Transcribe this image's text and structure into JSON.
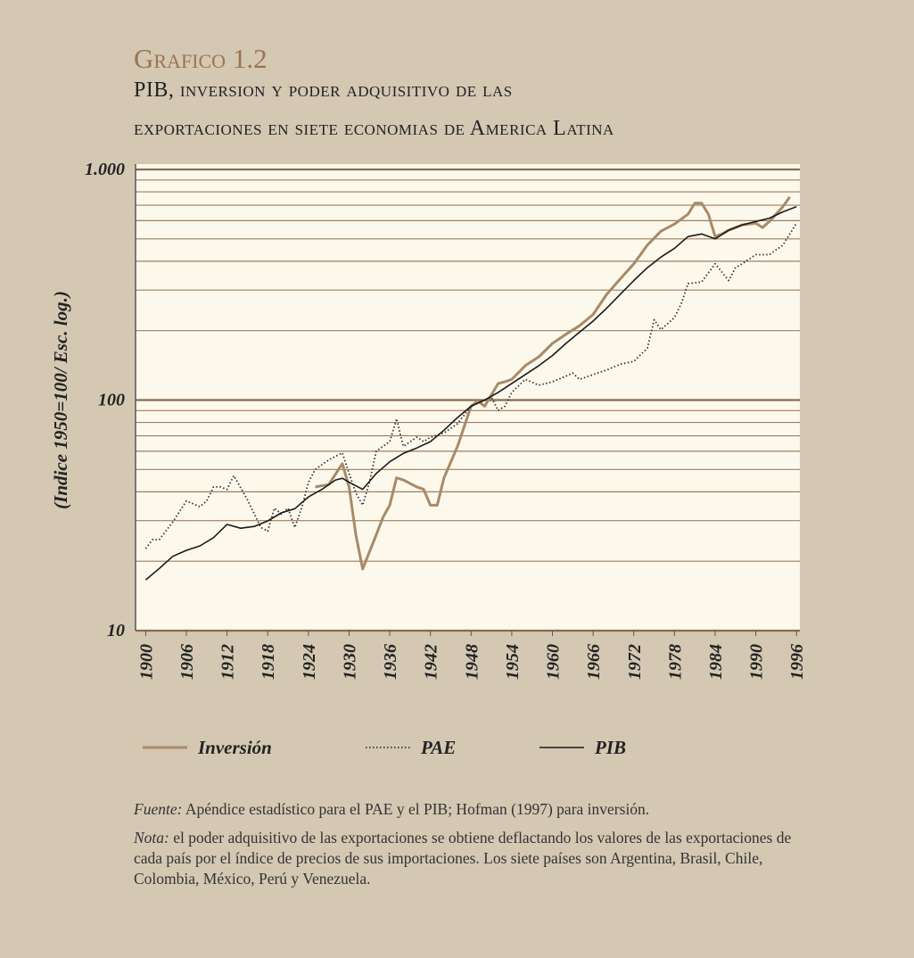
{
  "chart_data": {
    "type": "line",
    "title": "Grafico 1.2",
    "subtitle": [
      "PIB, inversion y poder adquisitivo de las",
      "exportaciones en siete economias de America Latina"
    ],
    "ylabel": "(Indice 1950=100/ Esc. log.)",
    "log_y": true,
    "grid": true,
    "xlim": [
      1898.5,
      1996.5
    ],
    "xticks": [
      1900,
      1906,
      1912,
      1918,
      1924,
      1930,
      1936,
      1942,
      1948,
      1954,
      1960,
      1966,
      1972,
      1978,
      1984,
      1990,
      1996
    ],
    "ylim": [
      10,
      1000
    ],
    "yticks": [
      {
        "value": 1000,
        "label": "1.000"
      },
      100,
      10
    ],
    "minor_yticks": [
      20,
      30,
      40,
      50,
      60,
      70,
      80,
      90,
      200,
      300,
      400,
      500,
      600,
      700,
      800,
      900
    ],
    "series": [
      {
        "name": "Inversión",
        "color": "#a88a68",
        "style": "solid",
        "x": [
          1925,
          1927,
          1929,
          1930,
          1931,
          1932,
          1934,
          1935,
          1936,
          1937,
          1938,
          1940,
          1941,
          1942,
          1943,
          1944,
          1946,
          1948,
          1949,
          1950,
          1952,
          1953,
          1954,
          1956,
          1958,
          1960,
          1962,
          1964,
          1966,
          1968,
          1970,
          1972,
          1974,
          1976,
          1978,
          1980,
          1981,
          1982,
          1983,
          1984,
          1985,
          1986,
          1988,
          1990,
          1991,
          1992,
          1994,
          1995
        ],
        "values": [
          42,
          43,
          53,
          42,
          26,
          18.5,
          26,
          31,
          35,
          46,
          45,
          42,
          41,
          35,
          35,
          46,
          63,
          94,
          99,
          94,
          118,
          120,
          123,
          141,
          154,
          176,
          193,
          210,
          235,
          287,
          335,
          390,
          470,
          540,
          580,
          640,
          715,
          715,
          640,
          512,
          525,
          545,
          575,
          585,
          560,
          595,
          690,
          760
        ]
      },
      {
        "name": "PAE",
        "color": "#333333",
        "style": "dotted",
        "x": [
          1900,
          1901,
          1902,
          1904,
          1906,
          1908,
          1909,
          1910,
          1911,
          1912,
          1913,
          1915,
          1917,
          1918,
          1919,
          1920,
          1921,
          1922,
          1923,
          1924,
          1925,
          1927,
          1929,
          1930,
          1931,
          1932,
          1933,
          1934,
          1936,
          1937,
          1938,
          1940,
          1941,
          1942,
          1944,
          1946,
          1948,
          1950,
          1951,
          1952,
          1953,
          1954,
          1956,
          1958,
          1960,
          1962,
          1963,
          1964,
          1966,
          1968,
          1970,
          1972,
          1974,
          1975,
          1976,
          1978,
          1979,
          1980,
          1982,
          1984,
          1986,
          1987,
          1988,
          1990,
          1992,
          1994,
          1996
        ],
        "values": [
          22.7,
          24.8,
          24.8,
          29.6,
          36.5,
          34.5,
          36.5,
          42,
          42,
          41,
          47,
          37,
          28,
          27,
          34,
          32,
          34,
          28,
          34,
          44,
          50,
          55,
          59,
          48,
          39.5,
          35,
          44,
          60,
          66,
          83,
          63,
          69,
          66,
          69,
          72,
          79,
          94,
          100,
          103,
          90,
          94,
          108,
          123,
          116,
          120,
          127,
          131,
          123,
          129,
          135,
          143,
          147,
          168,
          223,
          202,
          228,
          262,
          320,
          325,
          390,
          330,
          375,
          390,
          427,
          427,
          470,
          585
        ]
      },
      {
        "name": "PIB",
        "color": "#1a1a1a",
        "style": "solid",
        "x": [
          1900,
          1902,
          1904,
          1906,
          1908,
          1910,
          1912,
          1914,
          1916,
          1918,
          1920,
          1922,
          1924,
          1926,
          1928,
          1929,
          1930,
          1932,
          1934,
          1936,
          1938,
          1940,
          1942,
          1944,
          1946,
          1948,
          1950,
          1952,
          1954,
          1956,
          1958,
          1960,
          1962,
          1964,
          1966,
          1968,
          1970,
          1972,
          1974,
          1976,
          1978,
          1980,
          1982,
          1984,
          1986,
          1988,
          1990,
          1992,
          1994,
          1996
        ],
        "values": [
          16.6,
          18.6,
          21,
          22.3,
          23.3,
          25.3,
          28.9,
          27.8,
          28.3,
          29.9,
          32.4,
          33.8,
          38,
          41,
          45,
          45.8,
          44,
          41,
          48,
          54,
          58.7,
          62,
          66,
          74,
          84,
          94,
          100,
          108,
          118,
          129,
          141,
          156,
          176,
          197,
          220,
          250,
          287,
          330,
          375,
          417,
          455,
          512,
          525,
          500,
          545,
          575,
          595,
          615,
          655,
          690
        ]
      }
    ],
    "source": {
      "label": "Fuente:",
      "text": "Apéndice estadístico para el PAE y el PIB; Hofman (1997) para inversión."
    },
    "note": {
      "label": "Nota:",
      "text": "el poder adquisitivo de las exportaciones se obtiene deflactando los valores de las exportaciones de cada país por el índice de precios de sus importaciones. Los siete países son Argentina, Brasil, Chile, Colombia, México, Perú y Venezuela."
    }
  }
}
